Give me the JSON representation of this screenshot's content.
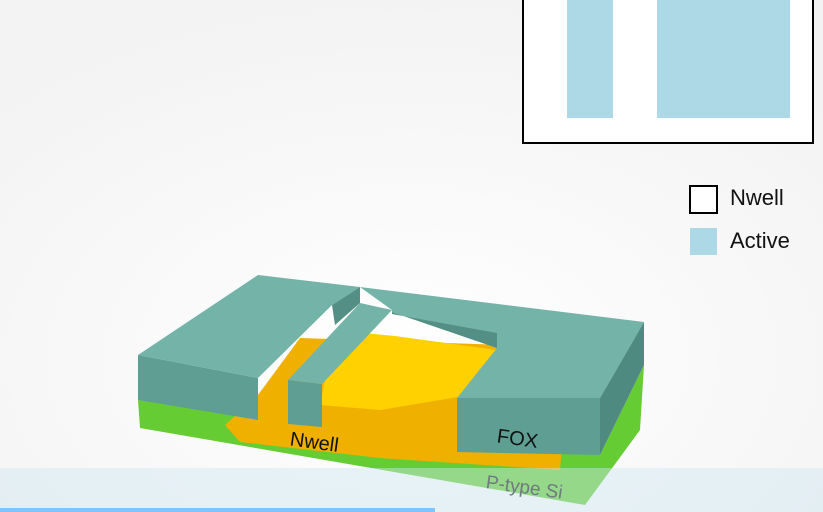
{
  "legend": {
    "items": [
      {
        "label": "Nwell",
        "swatch": "outline"
      },
      {
        "label": "Active",
        "swatch": "#add8e6"
      }
    ]
  },
  "labels": {
    "nwell": "Nwell",
    "fox": "FOX",
    "substrate": "P-type Si"
  }
}
